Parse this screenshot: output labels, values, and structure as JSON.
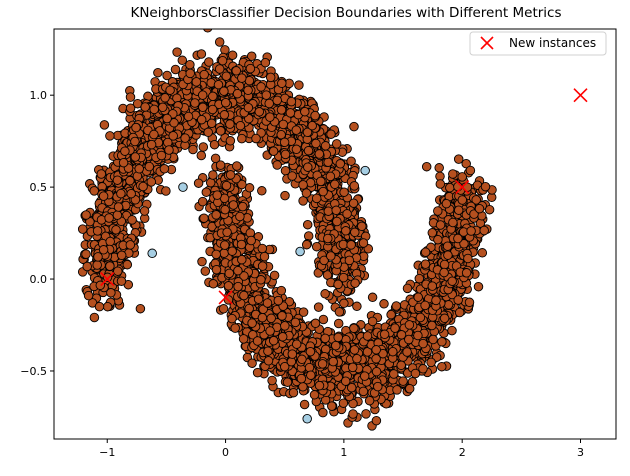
{
  "chart_data": {
    "type": "scatter",
    "title": "KNeighborsClassifier Decision Boundaries with Different Metrics",
    "xlabel": "",
    "ylabel": "",
    "xlim": [
      -1.45,
      3.3
    ],
    "ylim": [
      -0.87,
      1.36
    ],
    "xticks": [
      -1,
      0,
      1,
      2,
      3
    ],
    "xtick_labels": [
      "−1",
      "0",
      "1",
      "2",
      "3"
    ],
    "yticks": [
      -0.5,
      0.0,
      0.5,
      1.0
    ],
    "ytick_labels": [
      "−0.5",
      "0.0",
      "0.5",
      "1.0"
    ],
    "grid": false,
    "legend_position": "top-right",
    "colors": {
      "class_dark": "#b5501f",
      "class_light": "#a6cee3",
      "edge": "#000000",
      "new_instance": "#ff0000"
    },
    "series": [
      {
        "kind": "moons-dataset",
        "description_value": "two interleaving half-moons, noise 0.1",
        "upper_moon": {
          "center": [
            0,
            0
          ],
          "radius": 1.0,
          "angle_range_deg": [
            0,
            180
          ]
        },
        "lower_moon": {
          "center": [
            1,
            0.5
          ],
          "radius": 1.0,
          "angle_range_deg": [
            180,
            360
          ]
        },
        "noise": 0.1,
        "n_points": 5200,
        "color": "#b5501f"
      },
      {
        "kind": "light-points",
        "color": "#a6cee3",
        "points": [
          [
            -0.62,
            0.14
          ],
          [
            -0.36,
            0.5
          ],
          [
            1.18,
            0.59
          ],
          [
            0.63,
            0.15
          ],
          [
            0.69,
            -0.76
          ]
        ]
      },
      {
        "name": "New instances",
        "kind": "new-instances",
        "marker": "x",
        "color": "#ff0000",
        "points": [
          [
            -1.0,
            0.0
          ],
          [
            0.0,
            -0.1
          ],
          [
            2.0,
            0.5
          ],
          [
            3.0,
            1.0
          ]
        ]
      }
    ]
  }
}
